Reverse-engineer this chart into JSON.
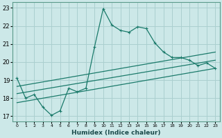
{
  "title": "",
  "xlabel": "Humidex (Indice chaleur)",
  "ylabel": "",
  "bg_color": "#cce8e8",
  "grid_color": "#aacfcf",
  "line_color": "#1a7a6a",
  "xlim": [
    -0.5,
    23.5
  ],
  "ylim": [
    16.7,
    23.3
  ],
  "xticks": [
    0,
    1,
    2,
    3,
    4,
    5,
    6,
    7,
    8,
    9,
    10,
    11,
    12,
    13,
    14,
    15,
    16,
    17,
    18,
    19,
    20,
    21,
    22,
    23
  ],
  "yticks": [
    17,
    18,
    19,
    20,
    21,
    22,
    23
  ],
  "main_x": [
    0,
    1,
    2,
    3,
    4,
    5,
    6,
    7,
    8,
    9,
    10,
    11,
    12,
    13,
    14,
    15,
    16,
    17,
    18,
    19,
    20,
    21,
    22,
    23
  ],
  "main_y": [
    19.1,
    18.0,
    18.2,
    17.5,
    17.05,
    17.3,
    18.55,
    18.35,
    18.55,
    20.85,
    22.95,
    22.05,
    21.75,
    21.65,
    21.95,
    21.85,
    21.05,
    20.55,
    20.25,
    20.25,
    20.1,
    19.8,
    19.95,
    19.65
  ],
  "line2_x": [
    0,
    23
  ],
  "line2_y": [
    18.25,
    20.1
  ],
  "line3_x": [
    0,
    23
  ],
  "line3_y": [
    17.75,
    19.65
  ],
  "line4_x": [
    0,
    23
  ],
  "line4_y": [
    18.65,
    20.55
  ],
  "figsize": [
    3.2,
    2.0
  ],
  "dpi": 100
}
